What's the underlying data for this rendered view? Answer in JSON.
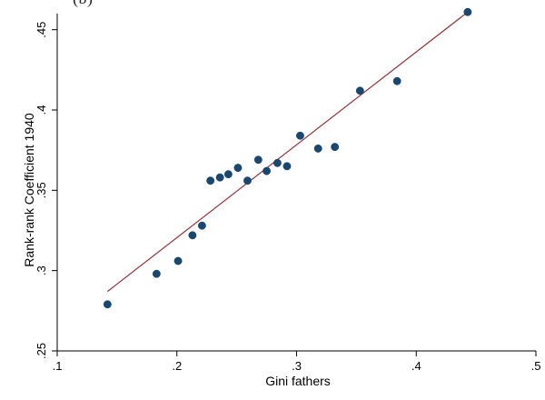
{
  "header": {
    "cropped_title": "(b)"
  },
  "chart_data": {
    "type": "scatter",
    "xlabel": "Gini fathers",
    "ylabel": "Rank-rank Coefficient 1940",
    "xlim": [
      0.1,
      0.5
    ],
    "ylim": [
      0.25,
      0.46
    ],
    "xticks": [
      0.1,
      0.2,
      0.3,
      0.4,
      0.5
    ],
    "xtick_labels": [
      ".1",
      ".2",
      ".3",
      ".4",
      ".5"
    ],
    "yticks": [
      0.25,
      0.3,
      0.35,
      0.4,
      0.45
    ],
    "ytick_labels": [
      ".25",
      ".3",
      ".35",
      ".4",
      ".45"
    ],
    "grid": false,
    "legend": "none",
    "series": [
      {
        "type": "scatter",
        "color": "#1a476f",
        "points": [
          [
            0.142,
            0.279
          ],
          [
            0.183,
            0.298
          ],
          [
            0.201,
            0.306
          ],
          [
            0.213,
            0.322
          ],
          [
            0.221,
            0.328
          ],
          [
            0.228,
            0.356
          ],
          [
            0.236,
            0.358
          ],
          [
            0.243,
            0.36
          ],
          [
            0.251,
            0.364
          ],
          [
            0.259,
            0.356
          ],
          [
            0.268,
            0.369
          ],
          [
            0.275,
            0.362
          ],
          [
            0.284,
            0.367
          ],
          [
            0.292,
            0.365
          ],
          [
            0.303,
            0.384
          ],
          [
            0.318,
            0.376
          ],
          [
            0.332,
            0.377
          ],
          [
            0.353,
            0.412
          ],
          [
            0.384,
            0.418
          ],
          [
            0.443,
            0.461
          ]
        ]
      },
      {
        "type": "line",
        "color": "#90353b",
        "points": [
          [
            0.142,
            0.287
          ],
          [
            0.443,
            0.461
          ]
        ]
      }
    ]
  }
}
